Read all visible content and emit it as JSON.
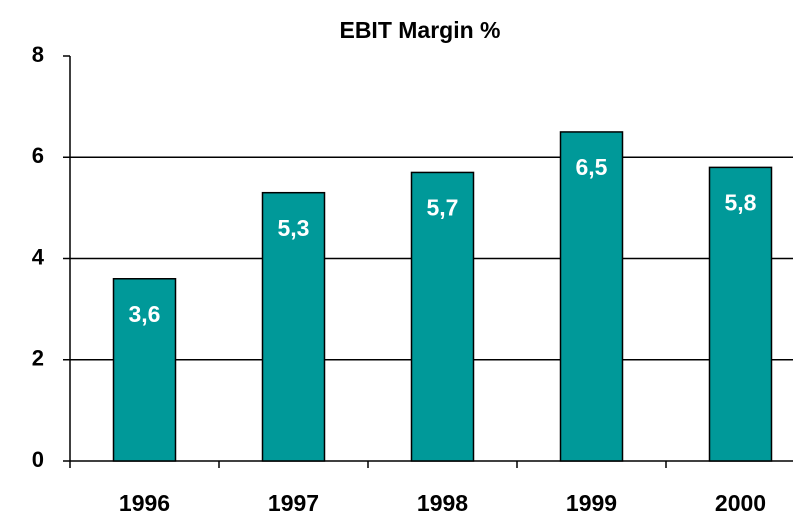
{
  "chart_data": {
    "type": "bar",
    "title": "EBIT Margin %",
    "categories": [
      "1996",
      "1997",
      "1998",
      "1999",
      "2000"
    ],
    "values": [
      3.6,
      5.3,
      5.7,
      6.5,
      5.8
    ],
    "value_labels": [
      "3,6",
      "5,3",
      "5,7",
      "6,5",
      "5,8"
    ],
    "color": "#009999",
    "ylim": [
      0,
      8
    ],
    "yticks": [
      0,
      2,
      4,
      6,
      8
    ],
    "grid": true
  }
}
